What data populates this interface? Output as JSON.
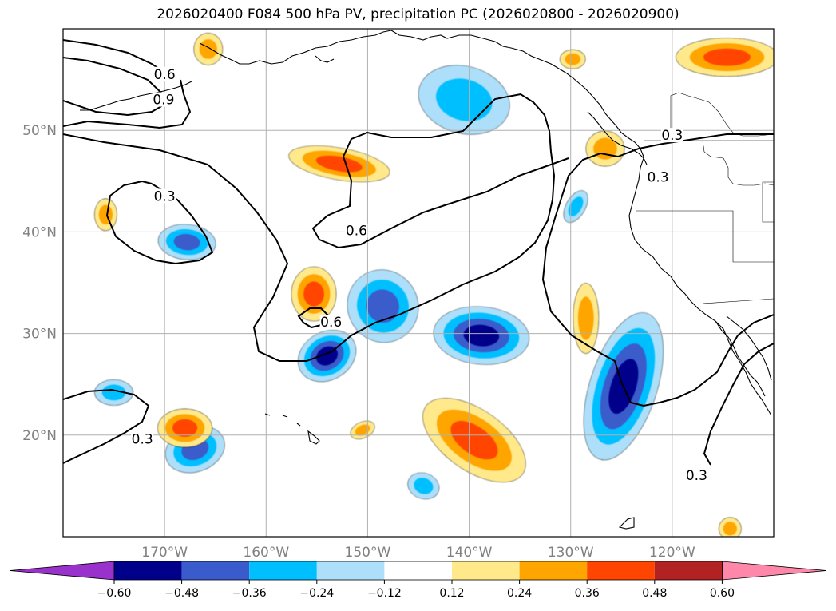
{
  "title": "2026020400 F084 500 hPa PV, precipitation PC (2026020800 - 2026020900)",
  "map": {
    "projection": "plate-carree",
    "lon_range": [
      -180,
      -110
    ],
    "lat_range": [
      10,
      60
    ],
    "lat_labels": [
      {
        "lat": 50,
        "text": "50°N"
      },
      {
        "lat": 40,
        "text": "40°N"
      },
      {
        "lat": 30,
        "text": "30°N"
      },
      {
        "lat": 20,
        "text": "20°N"
      }
    ],
    "lon_labels": [
      {
        "lon": -170,
        "text": "170°W"
      },
      {
        "lon": -160,
        "text": "160°W"
      },
      {
        "lon": -150,
        "text": "150°W"
      },
      {
        "lon": -140,
        "text": "140°W"
      },
      {
        "lon": -130,
        "text": "130°W"
      },
      {
        "lon": -120,
        "text": "120°W"
      }
    ],
    "pv_contour_labels": [
      {
        "text": "0.6",
        "lon": -170.0,
        "lat": 55.3
      },
      {
        "text": "0.9",
        "lon": -170.1,
        "lat": 52.8
      },
      {
        "text": "0.3",
        "lon": -170.0,
        "lat": 43.3
      },
      {
        "text": "0.6",
        "lon": -151.1,
        "lat": 39.9
      },
      {
        "text": "0.6",
        "lon": -153.6,
        "lat": 30.9
      },
      {
        "text": "0.3",
        "lon": -172.2,
        "lat": 19.4
      },
      {
        "text": "0.3",
        "lon": -120.0,
        "lat": 49.3
      },
      {
        "text": "0.3",
        "lon": -121.4,
        "lat": 45.2
      },
      {
        "text": "0.3",
        "lon": -117.6,
        "lat": 15.8
      }
    ]
  },
  "colorbar": {
    "ticks": [
      "−0.60",
      "−0.48",
      "−0.36",
      "−0.24",
      "−0.12",
      "0.12",
      "0.24",
      "0.36",
      "0.48",
      "0.60"
    ],
    "colors": [
      "#9932CC",
      "#00008B",
      "#3A5BCB",
      "#00BFFF",
      "#ADDFFA",
      "#FFFFFF",
      "#FFE98A",
      "#FFA500",
      "#FF4500",
      "#B22222",
      "#FF88AA"
    ]
  },
  "chart_data": {
    "type": "map",
    "title": "2026020400 F084 500 hPa PV, precipitation PC (2026020800 - 2026020900)",
    "variable_contours": "500 hPa PV",
    "contour_levels": [
      0.3,
      0.6,
      0.9
    ],
    "variable_filled": "precipitation PC",
    "filled_levels": [
      -0.6,
      -0.48,
      -0.36,
      -0.24,
      -0.12,
      0.12,
      0.24,
      0.36,
      0.48,
      0.6
    ],
    "features": [
      {
        "lon": -140.5,
        "lat": 53,
        "value": -0.3
      },
      {
        "lon": -138.8,
        "lat": 29.8,
        "value": -0.52
      },
      {
        "lon": -124.8,
        "lat": 24.8,
        "value": -0.55
      },
      {
        "lon": -148.5,
        "lat": 32.7,
        "value": -0.4
      },
      {
        "lon": -154,
        "lat": 27.8,
        "value": -0.5
      },
      {
        "lon": -167.8,
        "lat": 39,
        "value": -0.38
      },
      {
        "lon": -167,
        "lat": 18.6,
        "value": -0.38
      },
      {
        "lon": -144.5,
        "lat": 15,
        "value": -0.3
      },
      {
        "lon": -175,
        "lat": 24.2,
        "value": -0.3
      },
      {
        "lon": -129.5,
        "lat": 42.5,
        "value": -0.25
      },
      {
        "lon": -139.5,
        "lat": 19.5,
        "value": 0.38
      },
      {
        "lon": -155.3,
        "lat": 33.9,
        "value": 0.38
      },
      {
        "lon": -152.8,
        "lat": 46.7,
        "value": 0.36
      },
      {
        "lon": -126.6,
        "lat": 48.2,
        "value": 0.3
      },
      {
        "lon": -114.6,
        "lat": 57.2,
        "value": 0.36
      },
      {
        "lon": -165.7,
        "lat": 58,
        "value": 0.3
      },
      {
        "lon": -168,
        "lat": 20.7,
        "value": 0.36
      },
      {
        "lon": -175.8,
        "lat": 41.7,
        "value": 0.28
      },
      {
        "lon": -128.5,
        "lat": 31.5,
        "value": 0.26
      },
      {
        "lon": -129.8,
        "lat": 57,
        "value": 0.25
      },
      {
        "lon": -114.3,
        "lat": 10.8,
        "value": 0.28
      },
      {
        "lon": -150.5,
        "lat": 20.5,
        "value": 0.26
      }
    ]
  }
}
